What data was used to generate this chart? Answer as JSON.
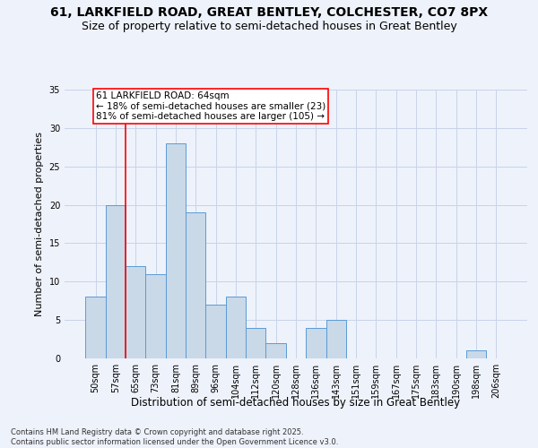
{
  "title1": "61, LARKFIELD ROAD, GREAT BENTLEY, COLCHESTER, CO7 8PX",
  "title2": "Size of property relative to semi-detached houses in Great Bentley",
  "xlabel": "Distribution of semi-detached houses by size in Great Bentley",
  "ylabel": "Number of semi-detached properties",
  "categories": [
    "50sqm",
    "57sqm",
    "65sqm",
    "73sqm",
    "81sqm",
    "89sqm",
    "96sqm",
    "104sqm",
    "112sqm",
    "120sqm",
    "128sqm",
    "136sqm",
    "143sqm",
    "151sqm",
    "159sqm",
    "167sqm",
    "175sqm",
    "183sqm",
    "190sqm",
    "198sqm",
    "206sqm"
  ],
  "values": [
    8,
    20,
    12,
    11,
    28,
    19,
    7,
    8,
    4,
    2,
    0,
    4,
    5,
    0,
    0,
    0,
    0,
    0,
    0,
    1,
    0
  ],
  "bar_color": "#c9d9e8",
  "bar_edge_color": "#5b9bd5",
  "subject_label": "61 LARKFIELD ROAD: 64sqm",
  "annotation_smaller": "← 18% of semi-detached houses are smaller (23)",
  "annotation_larger": "81% of semi-detached houses are larger (105) →",
  "ylim": [
    0,
    35
  ],
  "yticks": [
    0,
    5,
    10,
    15,
    20,
    25,
    30,
    35
  ],
  "footer": "Contains HM Land Registry data © Crown copyright and database right 2025.\nContains public sector information licensed under the Open Government Licence v3.0.",
  "bg_color": "#eef2fb",
  "grid_color": "#c8d4e8",
  "title_fontsize": 10,
  "subtitle_fontsize": 9,
  "tick_fontsize": 7,
  "ylabel_fontsize": 8,
  "xlabel_fontsize": 8.5,
  "footer_fontsize": 6,
  "annot_fontsize": 7.5
}
